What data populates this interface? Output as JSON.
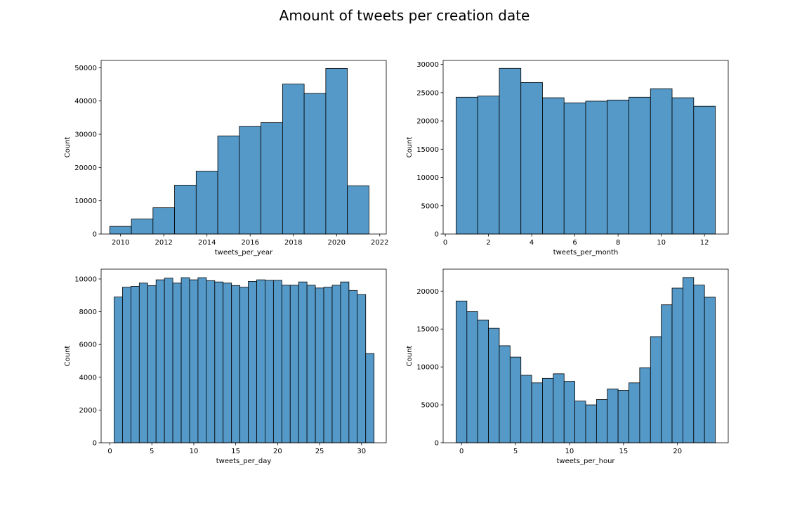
{
  "title": "Amount of tweets per creation date",
  "colors": {
    "bar": "#5599c8",
    "edge": "#000000"
  },
  "chart_data": [
    {
      "type": "bar",
      "xlabel": "tweets_per_year",
      "ylabel": "Count",
      "xlim": [
        2009.1,
        2022.3
      ],
      "ylim": [
        0,
        52200
      ],
      "xticks": [
        2010,
        2012,
        2014,
        2016,
        2018,
        2020,
        2022
      ],
      "yticks": [
        0,
        10000,
        20000,
        30000,
        40000,
        50000
      ],
      "bins": [
        {
          "x0": 2009.5,
          "x1": 2010.5,
          "value": 2300
        },
        {
          "x0": 2010.5,
          "x1": 2011.5,
          "value": 4500
        },
        {
          "x0": 2011.5,
          "x1": 2012.5,
          "value": 7900
        },
        {
          "x0": 2012.5,
          "x1": 2013.5,
          "value": 14700
        },
        {
          "x0": 2013.5,
          "x1": 2014.5,
          "value": 18900
        },
        {
          "x0": 2014.5,
          "x1": 2015.5,
          "value": 29500
        },
        {
          "x0": 2015.5,
          "x1": 2016.5,
          "value": 32400
        },
        {
          "x0": 2016.5,
          "x1": 2017.5,
          "value": 33500
        },
        {
          "x0": 2017.5,
          "x1": 2018.5,
          "value": 45100
        },
        {
          "x0": 2018.5,
          "x1": 2019.5,
          "value": 42300
        },
        {
          "x0": 2019.5,
          "x1": 2020.5,
          "value": 49800
        },
        {
          "x0": 2020.5,
          "x1": 2021.5,
          "value": 14500
        }
      ]
    },
    {
      "type": "bar",
      "xlabel": "tweets_per_month",
      "ylabel": "Count",
      "xlim": [
        -0.1,
        13.1
      ],
      "ylim": [
        0,
        30700
      ],
      "xticks": [
        0,
        2,
        4,
        6,
        8,
        10,
        12
      ],
      "yticks": [
        0,
        5000,
        10000,
        15000,
        20000,
        25000,
        30000
      ],
      "bins": [
        {
          "x0": 0.5,
          "x1": 1.5,
          "value": 24200
        },
        {
          "x0": 1.5,
          "x1": 2.5,
          "value": 24400
        },
        {
          "x0": 2.5,
          "x1": 3.5,
          "value": 29300
        },
        {
          "x0": 3.5,
          "x1": 4.5,
          "value": 26800
        },
        {
          "x0": 4.5,
          "x1": 5.5,
          "value": 24100
        },
        {
          "x0": 5.5,
          "x1": 6.5,
          "value": 23200
        },
        {
          "x0": 6.5,
          "x1": 7.5,
          "value": 23500
        },
        {
          "x0": 7.5,
          "x1": 8.5,
          "value": 23700
        },
        {
          "x0": 8.5,
          "x1": 9.5,
          "value": 24200
        },
        {
          "x0": 9.5,
          "x1": 10.5,
          "value": 25700
        },
        {
          "x0": 10.5,
          "x1": 11.5,
          "value": 24100
        },
        {
          "x0": 11.5,
          "x1": 12.5,
          "value": 22600
        }
      ]
    },
    {
      "type": "bar",
      "xlabel": "tweets_per_day",
      "ylabel": "Count",
      "xlim": [
        -1.05,
        32.95
      ],
      "ylim": [
        0,
        10600
      ],
      "xticks": [
        0,
        5,
        10,
        15,
        20,
        25,
        30
      ],
      "yticks": [
        0,
        2000,
        4000,
        6000,
        8000,
        10000
      ],
      "bins": [
        {
          "x0": 0.5,
          "x1": 1.5,
          "value": 8900
        },
        {
          "x0": 1.5,
          "x1": 2.5,
          "value": 9500
        },
        {
          "x0": 2.5,
          "x1": 3.5,
          "value": 9550
        },
        {
          "x0": 3.5,
          "x1": 4.5,
          "value": 9750
        },
        {
          "x0": 4.5,
          "x1": 5.5,
          "value": 9600
        },
        {
          "x0": 5.5,
          "x1": 6.5,
          "value": 9950
        },
        {
          "x0": 6.5,
          "x1": 7.5,
          "value": 10050
        },
        {
          "x0": 7.5,
          "x1": 8.5,
          "value": 9750
        },
        {
          "x0": 8.5,
          "x1": 9.5,
          "value": 10080
        },
        {
          "x0": 9.5,
          "x1": 10.5,
          "value": 9950
        },
        {
          "x0": 10.5,
          "x1": 11.5,
          "value": 10080
        },
        {
          "x0": 11.5,
          "x1": 12.5,
          "value": 9900
        },
        {
          "x0": 12.5,
          "x1": 13.5,
          "value": 9820
        },
        {
          "x0": 13.5,
          "x1": 14.5,
          "value": 9750
        },
        {
          "x0": 14.5,
          "x1": 15.5,
          "value": 9600
        },
        {
          "x0": 15.5,
          "x1": 16.5,
          "value": 9500
        },
        {
          "x0": 16.5,
          "x1": 17.5,
          "value": 9850
        },
        {
          "x0": 17.5,
          "x1": 18.5,
          "value": 9950
        },
        {
          "x0": 18.5,
          "x1": 19.5,
          "value": 9920
        },
        {
          "x0": 19.5,
          "x1": 20.5,
          "value": 9920
        },
        {
          "x0": 20.5,
          "x1": 21.5,
          "value": 9620
        },
        {
          "x0": 21.5,
          "x1": 22.5,
          "value": 9620
        },
        {
          "x0": 22.5,
          "x1": 23.5,
          "value": 9820
        },
        {
          "x0": 23.5,
          "x1": 24.5,
          "value": 9620
        },
        {
          "x0": 24.5,
          "x1": 25.5,
          "value": 9450
        },
        {
          "x0": 25.5,
          "x1": 26.5,
          "value": 9500
        },
        {
          "x0": 26.5,
          "x1": 27.5,
          "value": 9620
        },
        {
          "x0": 27.5,
          "x1": 28.5,
          "value": 9820
        },
        {
          "x0": 28.5,
          "x1": 29.5,
          "value": 9300
        },
        {
          "x0": 29.5,
          "x1": 30.5,
          "value": 9050
        },
        {
          "x0": 30.5,
          "x1": 31.5,
          "value": 5450
        }
      ]
    },
    {
      "type": "bar",
      "xlabel": "tweets_per_hour",
      "ylabel": "Count",
      "xlim": [
        -1.7,
        24.7
      ],
      "ylim": [
        0,
        22900
      ],
      "xticks": [
        0,
        5,
        10,
        15,
        20
      ],
      "yticks": [
        0,
        5000,
        10000,
        15000,
        20000
      ],
      "bins": [
        {
          "x0": -0.5,
          "x1": 0.5,
          "value": 18700
        },
        {
          "x0": 0.5,
          "x1": 1.5,
          "value": 17300
        },
        {
          "x0": 1.5,
          "x1": 2.5,
          "value": 16200
        },
        {
          "x0": 2.5,
          "x1": 3.5,
          "value": 15100
        },
        {
          "x0": 3.5,
          "x1": 4.5,
          "value": 12800
        },
        {
          "x0": 4.5,
          "x1": 5.5,
          "value": 11300
        },
        {
          "x0": 5.5,
          "x1": 6.5,
          "value": 8900
        },
        {
          "x0": 6.5,
          "x1": 7.5,
          "value": 7900
        },
        {
          "x0": 7.5,
          "x1": 8.5,
          "value": 8500
        },
        {
          "x0": 8.5,
          "x1": 9.5,
          "value": 9100
        },
        {
          "x0": 9.5,
          "x1": 10.5,
          "value": 8100
        },
        {
          "x0": 10.5,
          "x1": 11.5,
          "value": 5500
        },
        {
          "x0": 11.5,
          "x1": 12.5,
          "value": 5000
        },
        {
          "x0": 12.5,
          "x1": 13.5,
          "value": 5700
        },
        {
          "x0": 13.5,
          "x1": 14.5,
          "value": 7100
        },
        {
          "x0": 14.5,
          "x1": 15.5,
          "value": 6900
        },
        {
          "x0": 15.5,
          "x1": 16.5,
          "value": 7900
        },
        {
          "x0": 16.5,
          "x1": 17.5,
          "value": 9900
        },
        {
          "x0": 17.5,
          "x1": 18.5,
          "value": 14000
        },
        {
          "x0": 18.5,
          "x1": 19.5,
          "value": 18200
        },
        {
          "x0": 19.5,
          "x1": 20.5,
          "value": 20400
        },
        {
          "x0": 20.5,
          "x1": 21.5,
          "value": 21800
        },
        {
          "x0": 21.5,
          "x1": 22.5,
          "value": 20800
        },
        {
          "x0": 22.5,
          "x1": 23.5,
          "value": 19200
        }
      ]
    }
  ]
}
